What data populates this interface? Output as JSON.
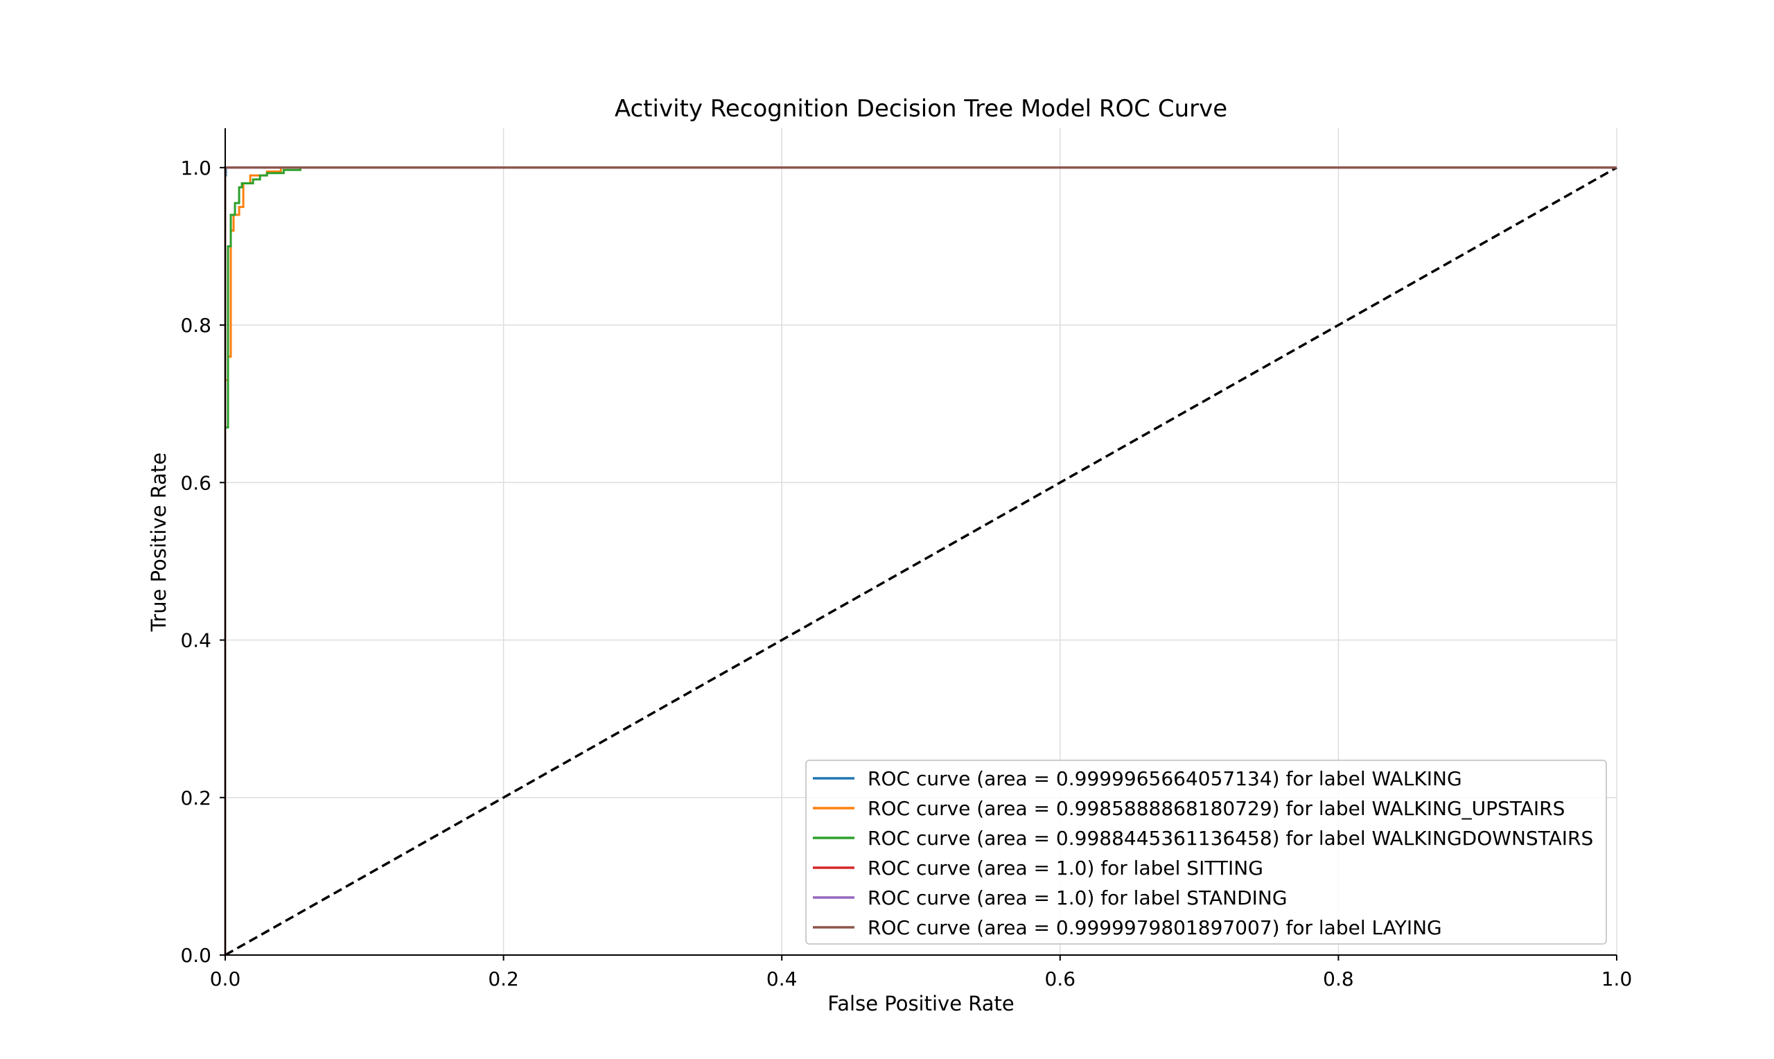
{
  "chart_data": {
    "type": "line",
    "title": "Activity Recognition Decision Tree Model ROC Curve",
    "xlabel": "False Positive Rate",
    "ylabel": "True Positive Rate",
    "xlim": [
      0.0,
      1.0
    ],
    "ylim": [
      0.0,
      1.05
    ],
    "x_ticks": [
      0.0,
      0.2,
      0.4,
      0.6,
      0.8,
      1.0
    ],
    "y_ticks": [
      0.0,
      0.2,
      0.4,
      0.6,
      0.8,
      1.0
    ],
    "x_tick_labels": [
      "0.0",
      "0.2",
      "0.4",
      "0.6",
      "0.8",
      "1.0"
    ],
    "y_tick_labels": [
      "0.0",
      "0.2",
      "0.4",
      "0.6",
      "0.8",
      "1.0"
    ],
    "grid": true,
    "legend_position": "lower-right",
    "series": [
      {
        "name": "ROC curve (area = 0.9999965664057134) for label WALKING",
        "color": "#1f77b4",
        "x": [
          0.0,
          0.0,
          0.0005,
          0.0005,
          1.0
        ],
        "y": [
          0.0,
          0.99,
          0.99,
          1.0,
          1.0
        ]
      },
      {
        "name": "ROC curve (area = 0.9985888868180729) for label WALKING_UPSTAIRS",
        "color": "#ff7f0e",
        "x": [
          0.0,
          0.0,
          0.002,
          0.002,
          0.004,
          0.004,
          0.006,
          0.006,
          0.01,
          0.01,
          0.013,
          0.013,
          0.018,
          0.018,
          0.03,
          0.03,
          0.04,
          0.04,
          1.0
        ],
        "y": [
          0.0,
          0.73,
          0.73,
          0.76,
          0.76,
          0.92,
          0.92,
          0.94,
          0.94,
          0.95,
          0.95,
          0.98,
          0.98,
          0.99,
          0.99,
          0.995,
          0.995,
          1.0,
          1.0
        ]
      },
      {
        "name": "ROC curve (area = 0.9988445361136458) for label WALKINGDOWNSTAIRS",
        "color": "#2ca02c",
        "x": [
          0.0,
          0.0,
          0.002,
          0.002,
          0.004,
          0.004,
          0.007,
          0.007,
          0.01,
          0.01,
          0.012,
          0.012,
          0.02,
          0.02,
          0.025,
          0.025,
          0.03,
          0.03,
          0.042,
          0.042,
          0.054,
          0.054,
          1.0
        ],
        "y": [
          0.0,
          0.67,
          0.67,
          0.9,
          0.9,
          0.94,
          0.94,
          0.955,
          0.955,
          0.975,
          0.975,
          0.98,
          0.98,
          0.985,
          0.985,
          0.99,
          0.99,
          0.993,
          0.993,
          0.997,
          0.997,
          1.0,
          1.0
        ]
      },
      {
        "name": "ROC curve (area = 1.0) for label SITTING",
        "color": "#d62728",
        "x": [
          0.0,
          0.0,
          1.0
        ],
        "y": [
          0.0,
          1.0,
          1.0
        ]
      },
      {
        "name": "ROC curve (area = 1.0) for label STANDING",
        "color": "#9467bd",
        "x": [
          0.0,
          0.0,
          1.0
        ],
        "y": [
          0.0,
          1.0,
          1.0
        ]
      },
      {
        "name": "ROC curve (area = 0.9999979801897007) for label LAYING",
        "color": "#8c564b",
        "x": [
          0.0,
          0.0,
          1.0
        ],
        "y": [
          0.0,
          1.0,
          1.0
        ]
      }
    ],
    "reference_line": {
      "x": [
        0.0,
        1.0
      ],
      "y": [
        0.0,
        1.0
      ],
      "color": "#000000",
      "style": "dashed"
    },
    "colors": {
      "grid": "#dddddd",
      "axis": "#000000",
      "legend_border": "#cccccc"
    }
  }
}
